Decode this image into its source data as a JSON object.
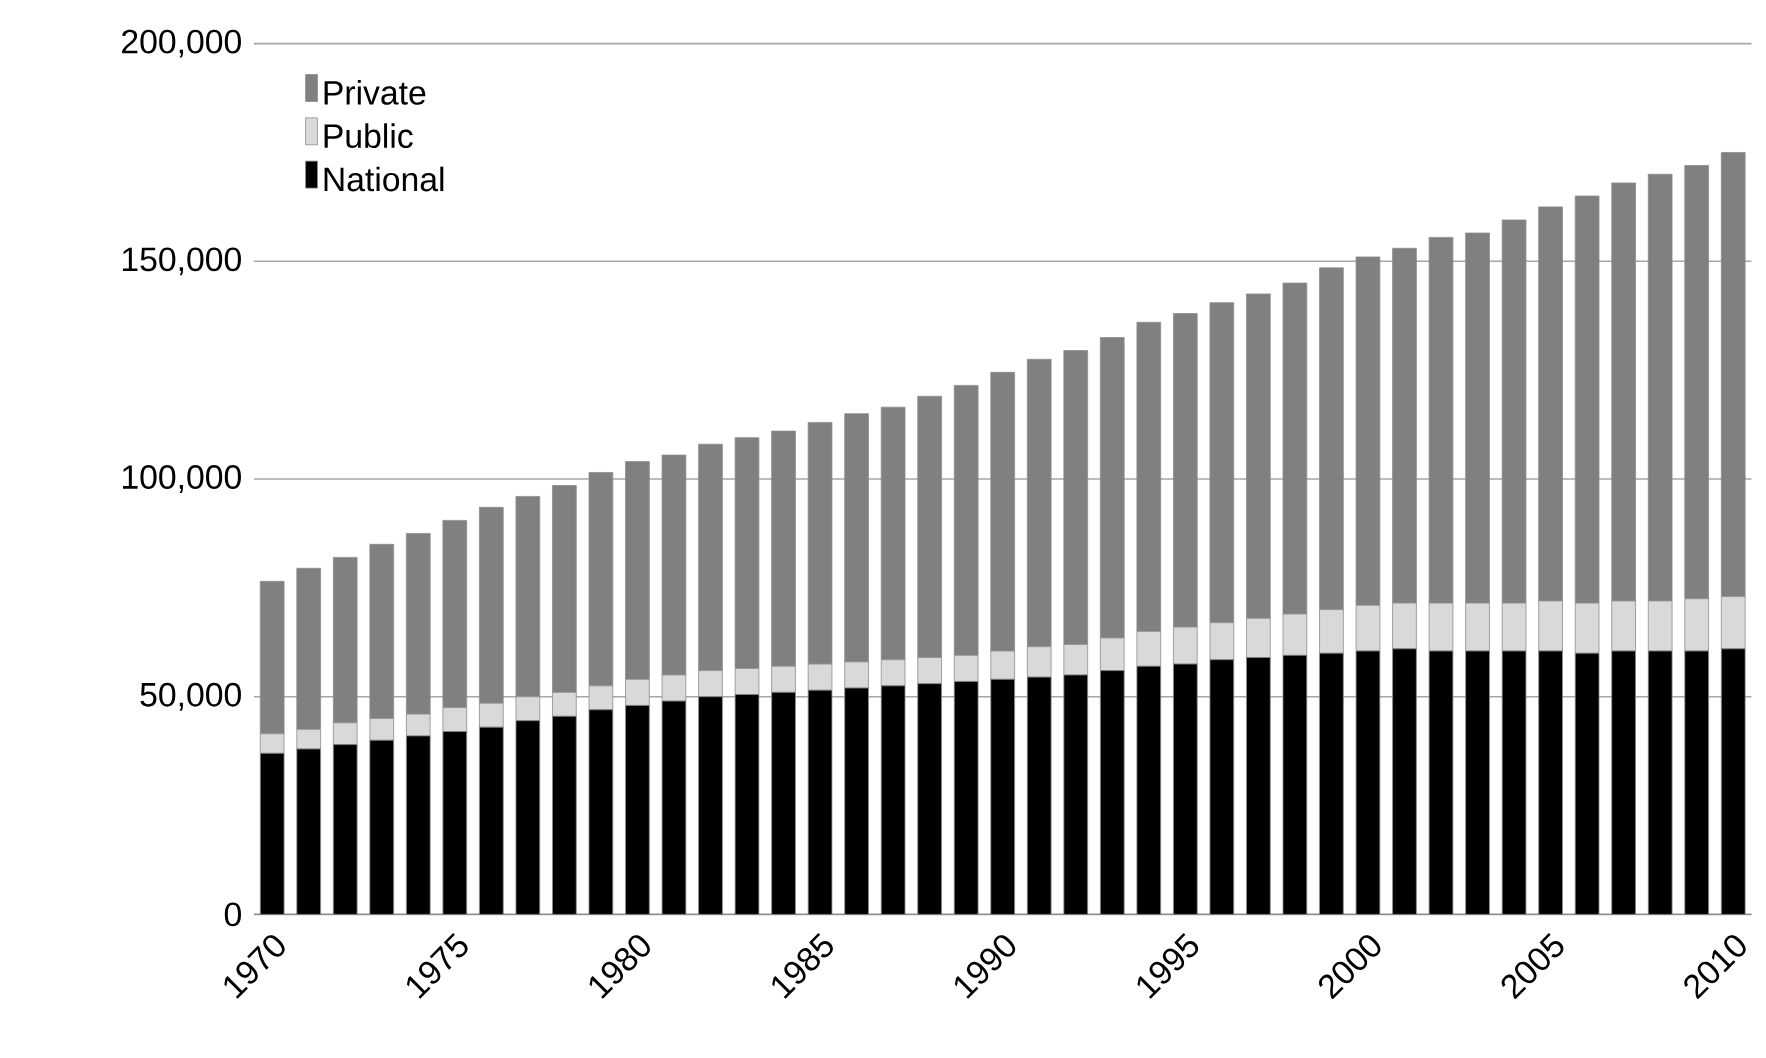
{
  "chart_data": {
    "type": "bar",
    "stacked": true,
    "x": [
      1970,
      1971,
      1972,
      1973,
      1974,
      1975,
      1976,
      1977,
      1978,
      1979,
      1980,
      1981,
      1982,
      1983,
      1984,
      1985,
      1986,
      1987,
      1988,
      1989,
      1990,
      1991,
      1992,
      1993,
      1994,
      1995,
      1996,
      1997,
      1998,
      1999,
      2000,
      2001,
      2002,
      2003,
      2004,
      2005,
      2006,
      2007,
      2008,
      2009,
      2010
    ],
    "series": [
      {
        "name": "National",
        "color": "#000000",
        "values": [
          37000,
          38000,
          39000,
          40000,
          41000,
          42000,
          43000,
          44500,
          45500,
          47000,
          48000,
          49000,
          50000,
          50500,
          51000,
          51500,
          52000,
          52500,
          53000,
          53500,
          54000,
          54500,
          55000,
          56000,
          57000,
          57500,
          58500,
          59000,
          59500,
          60000,
          60500,
          61000,
          60500,
          60500,
          60500,
          60500,
          60000,
          60500,
          60500,
          60500,
          61000
        ]
      },
      {
        "name": "Public",
        "color": "#d9d9d9",
        "values": [
          4500,
          4500,
          5000,
          5000,
          5000,
          5500,
          5500,
          5500,
          5500,
          5500,
          6000,
          6000,
          6000,
          6000,
          6000,
          6000,
          6000,
          6000,
          6000,
          6000,
          6500,
          7000,
          7000,
          7500,
          8000,
          8500,
          8500,
          9000,
          9500,
          10000,
          10500,
          10500,
          11000,
          11000,
          11000,
          11500,
          11500,
          11500,
          11500,
          12000,
          12000
        ]
      },
      {
        "name": "Private",
        "color": "#808080",
        "values": [
          35000,
          37000,
          38000,
          40000,
          41500,
          43000,
          45000,
          46000,
          47500,
          49000,
          50000,
          50500,
          52000,
          53000,
          54000,
          55500,
          57000,
          58000,
          60000,
          62000,
          64000,
          66000,
          67500,
          69000,
          71000,
          72000,
          73500,
          74500,
          76000,
          78500,
          80000,
          81500,
          84000,
          85000,
          88000,
          90500,
          93500,
          96000,
          98000,
          99500,
          102000
        ]
      }
    ],
    "xlim": [
      1969.5,
      2010.5
    ],
    "xticks": [
      1970,
      1975,
      1980,
      1985,
      1990,
      1995,
      2000,
      2005,
      2010
    ],
    "ylim": [
      0,
      200000
    ],
    "yticks": [
      0,
      {
        "value": 50000,
        "label": "50,000"
      },
      {
        "value": 100000,
        "label": "100,000"
      },
      {
        "value": 150000,
        "label": "150,000"
      },
      {
        "value": 200000,
        "label": "200,000"
      }
    ],
    "grid": "y",
    "legend": "top left"
  }
}
